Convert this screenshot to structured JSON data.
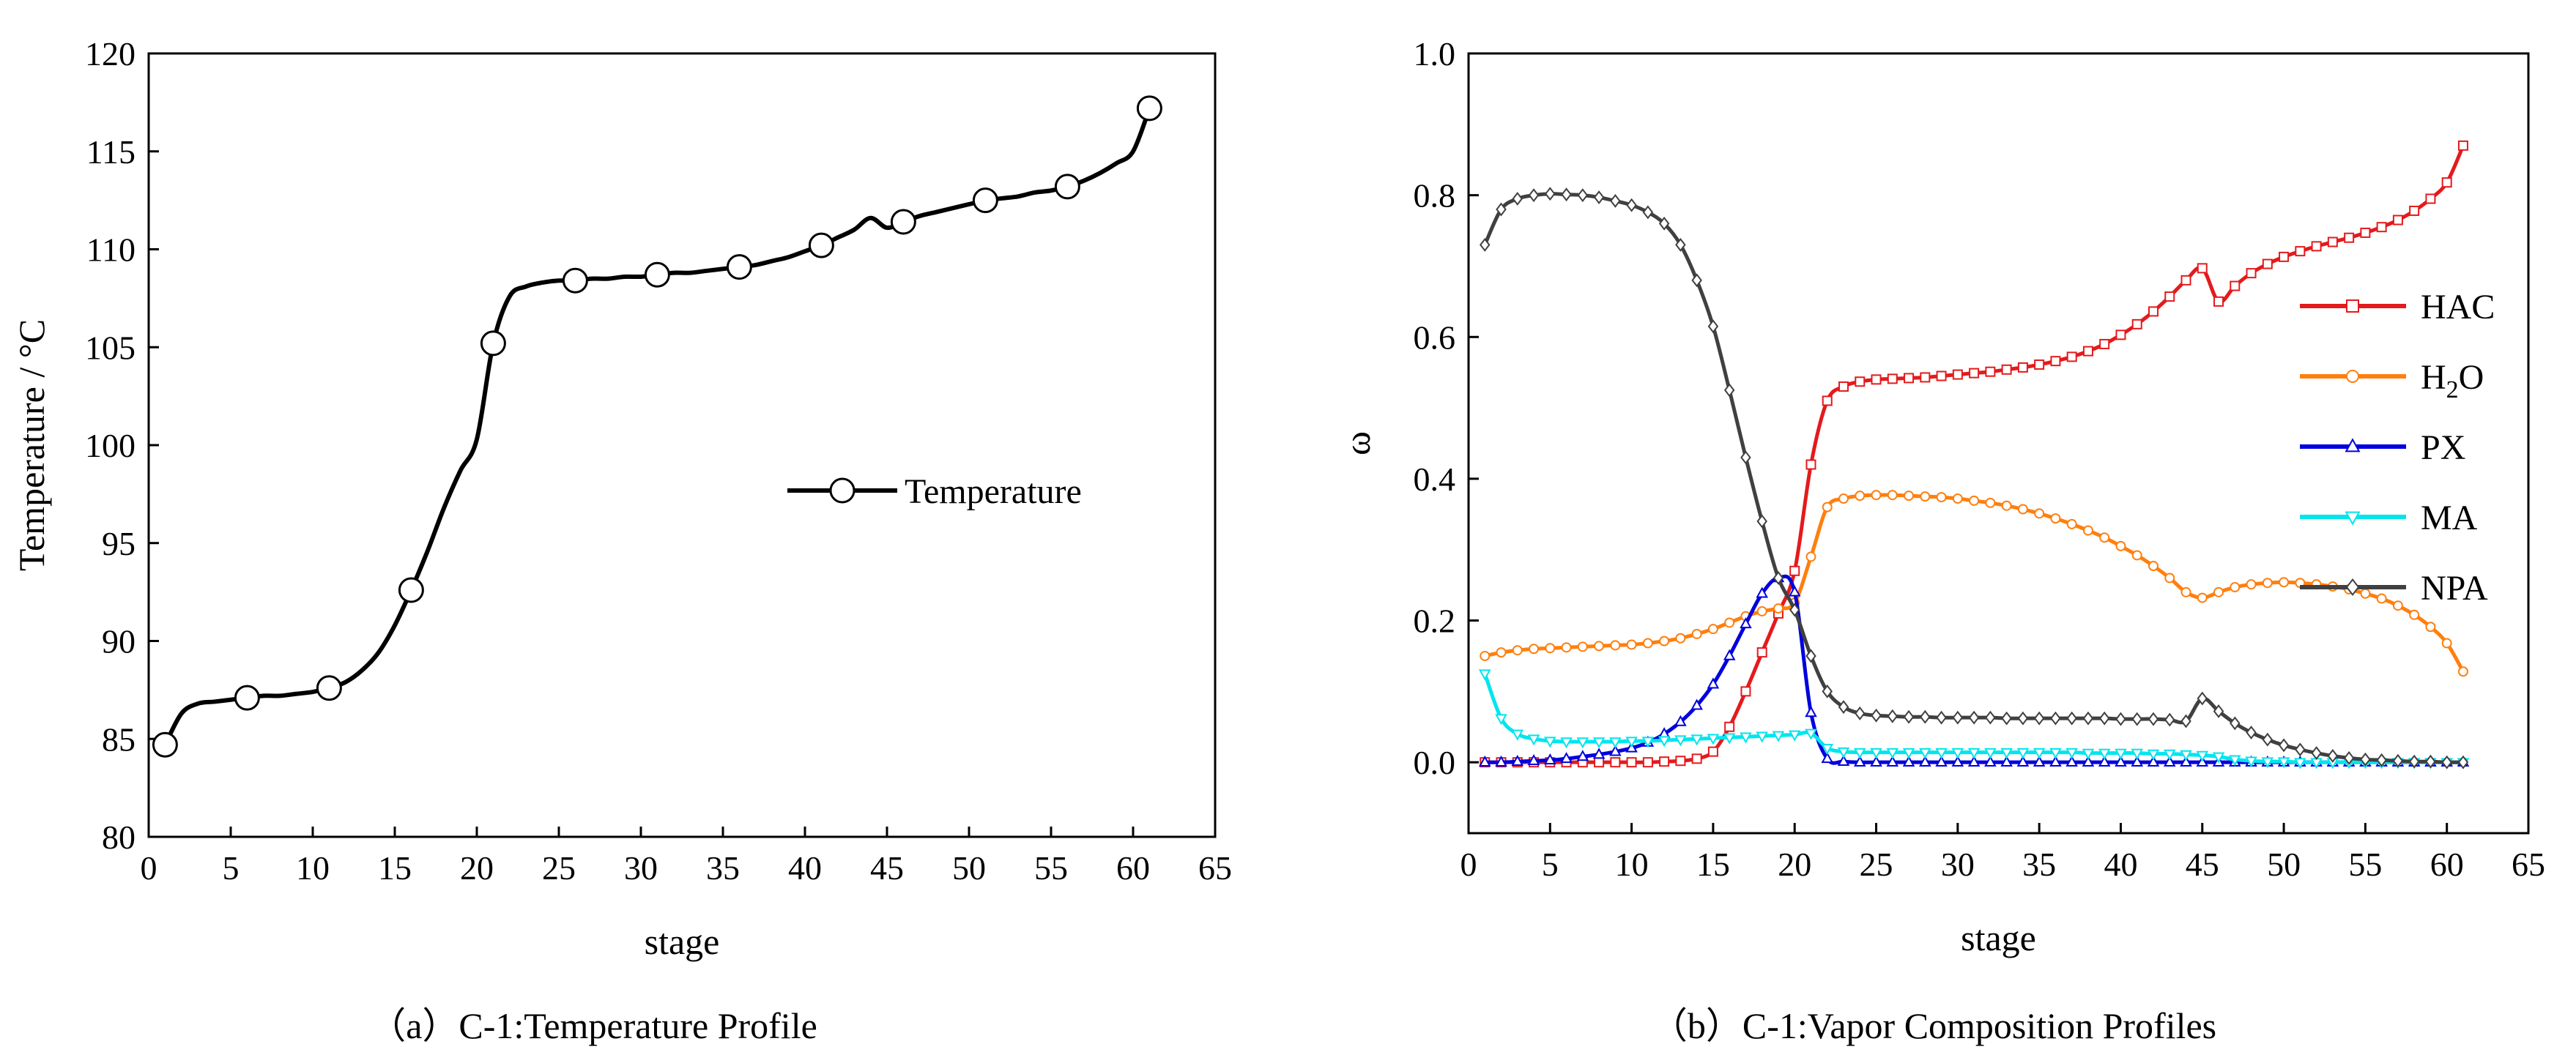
{
  "captions": {
    "left": "（a）C-1:Temperature Profile",
    "right": "（b）C-1:Vapor Composition Profiles"
  },
  "chart_data": [
    {
      "type": "line",
      "title": "（a）C-1:Temperature Profile",
      "xlabel": "stage",
      "ylabel": "Temperature / °C",
      "xlim": [
        0,
        65
      ],
      "ylim": [
        80,
        120
      ],
      "xticks": [
        0,
        5,
        10,
        15,
        20,
        25,
        30,
        35,
        40,
        45,
        50,
        55,
        60,
        65
      ],
      "yticks": [
        80,
        85,
        90,
        95,
        100,
        105,
        110,
        115,
        120
      ],
      "legend_position": "center-right",
      "series": [
        {
          "name": "Temperature",
          "color": "#000000",
          "marker": "circle",
          "marker_every": 5,
          "x": [
            1,
            2,
            3,
            4,
            5,
            6,
            7,
            8,
            9,
            10,
            11,
            12,
            13,
            14,
            15,
            16,
            17,
            18,
            19,
            20,
            21,
            22,
            23,
            24,
            25,
            26,
            27,
            28,
            29,
            30,
            31,
            32,
            33,
            34,
            35,
            36,
            37,
            38,
            39,
            40,
            41,
            42,
            43,
            44,
            45,
            46,
            47,
            48,
            49,
            50,
            51,
            52,
            53,
            54,
            55,
            56,
            57,
            58,
            59,
            60,
            61
          ],
          "values": [
            84.7,
            86.3,
            86.8,
            86.9,
            87.0,
            87.1,
            87.2,
            87.2,
            87.3,
            87.4,
            87.6,
            87.9,
            88.5,
            89.4,
            90.8,
            92.6,
            94.6,
            96.8,
            98.7,
            100.3,
            105.2,
            107.6,
            108.1,
            108.3,
            108.4,
            108.4,
            108.5,
            108.5,
            108.6,
            108.6,
            108.7,
            108.8,
            108.8,
            108.9,
            109.0,
            109.1,
            109.2,
            109.4,
            109.6,
            109.9,
            110.2,
            110.6,
            111.0,
            111.6,
            111.1,
            111.4,
            111.7,
            111.9,
            112.1,
            112.3,
            112.5,
            112.6,
            112.7,
            112.9,
            113.0,
            113.2,
            113.5,
            113.9,
            114.4,
            115.0,
            117.2
          ]
        }
      ]
    },
    {
      "type": "line",
      "title": "（b）C-1:Vapor Composition Profiles",
      "xlabel": "stage",
      "ylabel": "ω",
      "xlim": [
        0,
        65
      ],
      "ylim": [
        -0.1,
        1.0
      ],
      "xticks": [
        0,
        5,
        10,
        15,
        20,
        25,
        30,
        35,
        40,
        45,
        50,
        55,
        60,
        65
      ],
      "yticks": [
        0.0,
        0.2,
        0.4,
        0.6,
        0.8,
        1.0
      ],
      "legend_position": "right",
      "series": [
        {
          "name": "HAC",
          "legend_main": "HAC",
          "legend_sub": "",
          "legend_tail": "",
          "color": "#e41a1c",
          "marker": "square",
          "x": [
            1,
            2,
            3,
            4,
            5,
            6,
            7,
            8,
            9,
            10,
            11,
            12,
            13,
            14,
            15,
            16,
            17,
            18,
            19,
            20,
            21,
            22,
            23,
            24,
            25,
            26,
            27,
            28,
            29,
            30,
            31,
            32,
            33,
            34,
            35,
            36,
            37,
            38,
            39,
            40,
            41,
            42,
            43,
            44,
            45,
            46,
            47,
            48,
            49,
            50,
            51,
            52,
            53,
            54,
            55,
            56,
            57,
            58,
            59,
            60,
            61
          ],
          "values": [
            0.0,
            0.0,
            0.0,
            0.0,
            0.0,
            0.0,
            0.0,
            0.0,
            0.0,
            0.0,
            0.0,
            0.001,
            0.002,
            0.005,
            0.015,
            0.05,
            0.1,
            0.155,
            0.21,
            0.27,
            0.42,
            0.51,
            0.53,
            0.537,
            0.54,
            0.541,
            0.542,
            0.543,
            0.545,
            0.547,
            0.549,
            0.551,
            0.554,
            0.557,
            0.561,
            0.566,
            0.572,
            0.58,
            0.59,
            0.603,
            0.618,
            0.636,
            0.657,
            0.68,
            0.697,
            0.65,
            0.672,
            0.69,
            0.703,
            0.713,
            0.721,
            0.728,
            0.734,
            0.74,
            0.747,
            0.755,
            0.765,
            0.778,
            0.795,
            0.818,
            0.87
          ]
        },
        {
          "name": "H2O",
          "legend_main": "H",
          "legend_sub": "2",
          "legend_tail": "O",
          "color": "#ff7f0e",
          "marker": "circle",
          "x": [
            1,
            2,
            3,
            4,
            5,
            6,
            7,
            8,
            9,
            10,
            11,
            12,
            13,
            14,
            15,
            16,
            17,
            18,
            19,
            20,
            21,
            22,
            23,
            24,
            25,
            26,
            27,
            28,
            29,
            30,
            31,
            32,
            33,
            34,
            35,
            36,
            37,
            38,
            39,
            40,
            41,
            42,
            43,
            44,
            45,
            46,
            47,
            48,
            49,
            50,
            51,
            52,
            53,
            54,
            55,
            56,
            57,
            58,
            59,
            60,
            61
          ],
          "values": [
            0.15,
            0.155,
            0.158,
            0.16,
            0.161,
            0.162,
            0.163,
            0.164,
            0.165,
            0.166,
            0.168,
            0.171,
            0.175,
            0.181,
            0.188,
            0.197,
            0.206,
            0.213,
            0.217,
            0.225,
            0.29,
            0.36,
            0.372,
            0.376,
            0.377,
            0.377,
            0.376,
            0.375,
            0.374,
            0.372,
            0.369,
            0.366,
            0.362,
            0.357,
            0.351,
            0.344,
            0.336,
            0.327,
            0.317,
            0.305,
            0.292,
            0.277,
            0.26,
            0.24,
            0.232,
            0.24,
            0.247,
            0.251,
            0.253,
            0.254,
            0.253,
            0.251,
            0.248,
            0.244,
            0.238,
            0.231,
            0.221,
            0.208,
            0.191,
            0.168,
            0.128
          ]
        },
        {
          "name": "PX",
          "legend_main": "PX",
          "legend_sub": "",
          "legend_tail": "",
          "color": "#0000dd",
          "marker": "triangle",
          "x": [
            1,
            2,
            3,
            4,
            5,
            6,
            7,
            8,
            9,
            10,
            11,
            12,
            13,
            14,
            15,
            16,
            17,
            18,
            19,
            20,
            21,
            22,
            23,
            24,
            25,
            26,
            27,
            28,
            29,
            30,
            31,
            32,
            33,
            34,
            35,
            36,
            37,
            38,
            39,
            40,
            41,
            42,
            43,
            44,
            45,
            46,
            47,
            48,
            49,
            50,
            51,
            52,
            53,
            54,
            55,
            56,
            57,
            58,
            59,
            60,
            61
          ],
          "values": [
            0.0,
            0.0,
            0.001,
            0.002,
            0.003,
            0.005,
            0.008,
            0.011,
            0.015,
            0.02,
            0.028,
            0.04,
            0.057,
            0.08,
            0.11,
            0.15,
            0.195,
            0.238,
            0.26,
            0.24,
            0.07,
            0.005,
            0.001,
            0.0,
            0.0,
            0.0,
            0.0,
            0.0,
            0.0,
            0.0,
            0.0,
            0.0,
            0.0,
            0.0,
            0.0,
            0.0,
            0.0,
            0.0,
            0.0,
            0.0,
            0.0,
            0.0,
            0.0,
            0.0,
            0.0,
            0.0,
            0.0,
            0.0,
            0.0,
            0.0,
            0.0,
            0.0,
            0.0,
            0.0,
            0.0,
            0.0,
            0.0,
            0.0,
            0.0,
            0.0,
            0.0
          ]
        },
        {
          "name": "MA",
          "legend_main": "MA",
          "legend_sub": "",
          "legend_tail": "",
          "color": "#00e5ee",
          "marker": "triangle-down",
          "x": [
            1,
            2,
            3,
            4,
            5,
            6,
            7,
            8,
            9,
            10,
            11,
            12,
            13,
            14,
            15,
            16,
            17,
            18,
            19,
            20,
            21,
            22,
            23,
            24,
            25,
            26,
            27,
            28,
            29,
            30,
            31,
            32,
            33,
            34,
            35,
            36,
            37,
            38,
            39,
            40,
            41,
            42,
            43,
            44,
            45,
            46,
            47,
            48,
            49,
            50,
            51,
            52,
            53,
            54,
            55,
            56,
            57,
            58,
            59,
            60,
            61
          ],
          "values": [
            0.125,
            0.062,
            0.04,
            0.033,
            0.03,
            0.029,
            0.029,
            0.029,
            0.029,
            0.03,
            0.03,
            0.031,
            0.032,
            0.033,
            0.034,
            0.035,
            0.036,
            0.037,
            0.038,
            0.039,
            0.041,
            0.02,
            0.015,
            0.014,
            0.014,
            0.014,
            0.014,
            0.014,
            0.014,
            0.014,
            0.014,
            0.014,
            0.014,
            0.014,
            0.014,
            0.014,
            0.014,
            0.013,
            0.013,
            0.013,
            0.013,
            0.012,
            0.012,
            0.011,
            0.01,
            0.008,
            0.004,
            0.002,
            0.001,
            0.001,
            0.0,
            0.0,
            0.0,
            0.0,
            0.0,
            0.0,
            0.0,
            0.0,
            0.0,
            0.0,
            0.0
          ]
        },
        {
          "name": "NPA",
          "legend_main": "NPA",
          "legend_sub": "",
          "legend_tail": "",
          "color": "#404040",
          "marker": "diamond",
          "x": [
            1,
            2,
            3,
            4,
            5,
            6,
            7,
            8,
            9,
            10,
            11,
            12,
            13,
            14,
            15,
            16,
            17,
            18,
            19,
            20,
            21,
            22,
            23,
            24,
            25,
            26,
            27,
            28,
            29,
            30,
            31,
            32,
            33,
            34,
            35,
            36,
            37,
            38,
            39,
            40,
            41,
            42,
            43,
            44,
            45,
            46,
            47,
            48,
            49,
            50,
            51,
            52,
            53,
            54,
            55,
            56,
            57,
            58,
            59,
            60,
            61
          ],
          "values": [
            0.73,
            0.78,
            0.795,
            0.8,
            0.802,
            0.801,
            0.8,
            0.797,
            0.792,
            0.786,
            0.776,
            0.76,
            0.73,
            0.68,
            0.615,
            0.525,
            0.43,
            0.34,
            0.26,
            0.215,
            0.15,
            0.1,
            0.078,
            0.069,
            0.066,
            0.065,
            0.064,
            0.064,
            0.063,
            0.063,
            0.063,
            0.063,
            0.062,
            0.062,
            0.062,
            0.062,
            0.062,
            0.062,
            0.062,
            0.061,
            0.061,
            0.061,
            0.06,
            0.058,
            0.09,
            0.072,
            0.055,
            0.042,
            0.032,
            0.024,
            0.018,
            0.013,
            0.009,
            0.006,
            0.004,
            0.003,
            0.002,
            0.001,
            0.001,
            0.0,
            0.0
          ]
        }
      ]
    }
  ]
}
